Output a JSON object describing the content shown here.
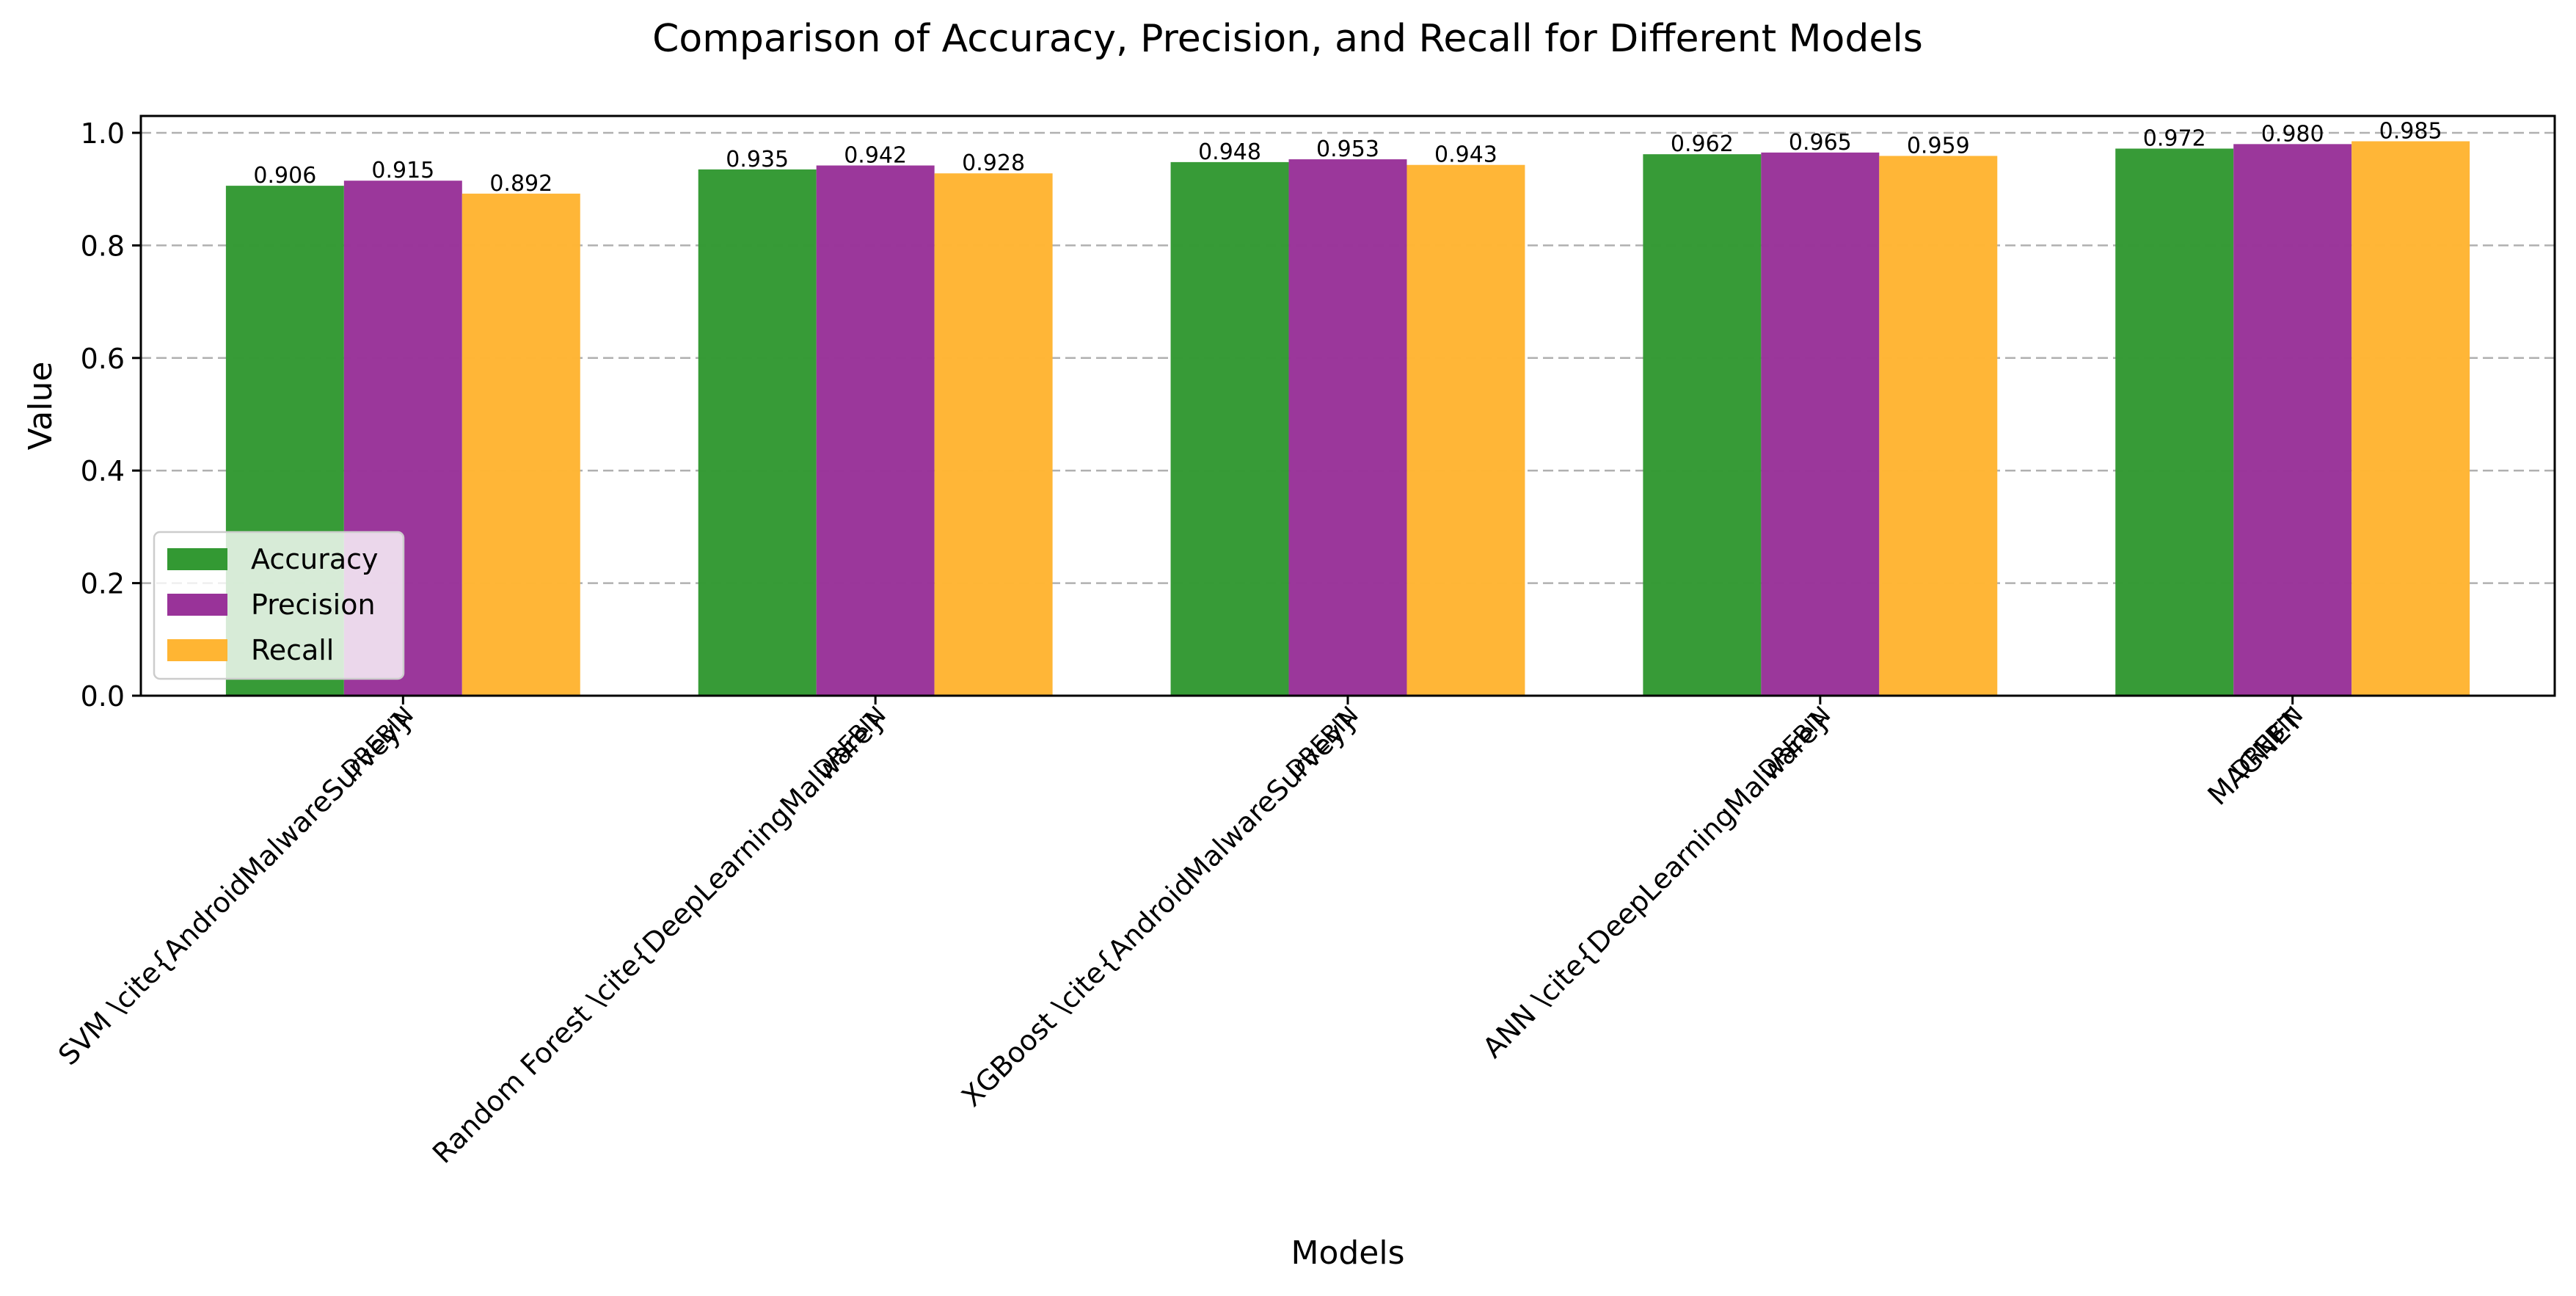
{
  "chart_data": {
    "type": "bar",
    "title": "Comparison of Accuracy, Precision, and Recall for Different Models",
    "xlabel": "Models",
    "ylabel": "Value",
    "ylim": [
      0,
      1.03
    ],
    "yticks": [
      0.0,
      0.2,
      0.4,
      0.6,
      0.8,
      1.0
    ],
    "ytick_labels": [
      "0.0",
      "0.2",
      "0.4",
      "0.6",
      "0.8",
      "1.0"
    ],
    "grid": "horizontal dashed",
    "legend_position": "lower-left",
    "categories": [
      "SVM \\cite{AndroidMalwareSurvey}",
      "Random Forest \\cite{DeepLearningMalware}",
      "XGBoost \\cite{AndroidMalwareSurvey}",
      "ANN \\cite{DeepLearningMalware}",
      "MAGNET"
    ],
    "secondary_tick_labels": [
      "DREBIN",
      "DREBIN",
      "DREBIN",
      "DREBIN",
      "DREBIN"
    ],
    "series": [
      {
        "name": "Accuracy",
        "color": "#339933",
        "values": [
          0.906,
          0.935,
          0.948,
          0.962,
          0.972
        ],
        "labels": [
          "0.906",
          "0.935",
          "0.948",
          "0.962",
          "0.972"
        ]
      },
      {
        "name": "Precision",
        "color": "#993399",
        "values": [
          0.915,
          0.942,
          0.953,
          0.965,
          0.98
        ],
        "labels": [
          "0.915",
          "0.942",
          "0.953",
          "0.965",
          "0.980"
        ]
      },
      {
        "name": "Recall",
        "color": "#ffb533",
        "values": [
          0.892,
          0.928,
          0.943,
          0.959,
          0.985
        ],
        "labels": [
          "0.892",
          "0.928",
          "0.943",
          "0.959",
          "0.985"
        ]
      }
    ]
  }
}
